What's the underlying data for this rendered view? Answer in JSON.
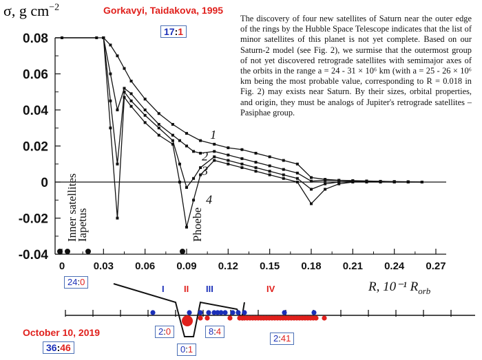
{
  "header": {
    "citation": "Gorkavyi, Taidakova, 1995",
    "count_box": {
      "left": "17",
      "sep": ":",
      "right": "1"
    },
    "ylabel": "σ, g cm",
    "ylabel_exp": "−2"
  },
  "paragraph": "The discovery of four new satellites of Saturn near the outer edge of the rings by the Hubble Space Telescope indicates that the list of minor satellites of this planet is not yet complete. Based on our Saturn-2 model (see Fig. 2), we surmise that the outermost group of not yet discovered retrograde satellites with semimajor axes of the orbits in the range a = 24 - 31 × 10⁶ km (with a = 25 - 26 × 10⁶ km being the most probable value, corresponding to R = 0.018 in Fig. 2) may exists near Saturn. By their sizes, orbital properties, and origin, they must be analogs of Jupiter's retrograde satellites – Pasiphae group.",
  "bottom": {
    "date": "October 10, 2019",
    "total_box": {
      "left": "36",
      "sep": ":",
      "right": "46"
    },
    "box_24_0": {
      "left": "24",
      "sep": ":",
      "right": "0"
    },
    "box_2_0": {
      "left": "2",
      "sep": ":",
      "right": "0"
    },
    "box_0_1": {
      "left": "0",
      "sep": ":",
      "right": "1"
    },
    "box_8_4": {
      "left": "8",
      "sep": ":",
      "right": "4"
    },
    "box_2_41": {
      "left": "2",
      "sep": ":",
      "right": "41"
    },
    "regions": [
      "I",
      "II",
      "III",
      "IV"
    ]
  },
  "chart_data": {
    "type": "line",
    "xlabel": "R, 10⁻¹ R",
    "xlabel_sub": "orb",
    "ylabel": "σ, g cm⁻²",
    "xlim": [
      0,
      0.27
    ],
    "ylim": [
      -0.04,
      0.08
    ],
    "x_ticks": [
      "0",
      "0.03",
      "0.06",
      "0.09",
      "0.12",
      "0.15",
      "0.18",
      "0.21",
      "0.24",
      "0.27"
    ],
    "y_ticks": [
      "0.08",
      "0.06",
      "0.04",
      "0.02",
      "0",
      "-0.02",
      "-0.04"
    ],
    "annotations": [
      "Inner satellites",
      "Iapetus",
      "Phoebe"
    ],
    "series": [
      {
        "name": "1",
        "x": [
          0.0,
          0.025,
          0.03,
          0.035,
          0.04,
          0.045,
          0.05,
          0.06,
          0.07,
          0.08,
          0.09,
          0.1,
          0.11,
          0.12,
          0.13,
          0.14,
          0.15,
          0.16,
          0.17,
          0.18,
          0.19,
          0.2,
          0.21,
          0.22,
          0.23,
          0.24,
          0.25,
          0.26
        ],
        "y": [
          0.08,
          0.08,
          0.08,
          0.076,
          0.07,
          0.063,
          0.056,
          0.046,
          0.038,
          0.032,
          0.027,
          0.023,
          0.021,
          0.019,
          0.018,
          0.016,
          0.014,
          0.012,
          0.01,
          0.0025,
          0.0015,
          0.001,
          0.0008,
          0.0006,
          0.0004,
          0.0003,
          0.0002,
          0.0
        ]
      },
      {
        "name": "2",
        "x": [
          0.03,
          0.035,
          0.04,
          0.045,
          0.05,
          0.06,
          0.07,
          0.08,
          0.085,
          0.09,
          0.095,
          0.1,
          0.11,
          0.12,
          0.13,
          0.14,
          0.15,
          0.16,
          0.17,
          0.18,
          0.19,
          0.2,
          0.21,
          0.22,
          0.23,
          0.24,
          0.25,
          0.26
        ],
        "y": [
          0.08,
          0.06,
          0.04,
          0.052,
          0.049,
          0.04,
          0.032,
          0.026,
          0.023,
          0.02,
          0.017,
          0.016,
          0.017,
          0.015,
          0.013,
          0.011,
          0.009,
          0.007,
          0.005,
          0.0005,
          0.001,
          0.0008,
          0.0006,
          0.0005,
          0.0004,
          0.0002,
          0.0001,
          0.0
        ]
      },
      {
        "name": "3",
        "x": [
          0.03,
          0.035,
          0.04,
          0.045,
          0.05,
          0.06,
          0.07,
          0.08,
          0.085,
          0.09,
          0.095,
          0.1,
          0.11,
          0.12,
          0.13,
          0.14,
          0.15,
          0.16,
          0.17,
          0.18,
          0.19,
          0.2,
          0.21,
          0.22,
          0.23,
          0.24,
          0.25,
          0.26
        ],
        "y": [
          0.08,
          0.045,
          0.01,
          0.05,
          0.045,
          0.037,
          0.03,
          0.023,
          0.01,
          -0.003,
          0.002,
          0.008,
          0.014,
          0.012,
          0.01,
          0.008,
          0.006,
          0.004,
          0.002,
          -0.004,
          -0.001,
          0.0,
          0.0003,
          0.0002,
          0.0001,
          0.0,
          0.0,
          0.0
        ]
      },
      {
        "name": "4",
        "x": [
          0.03,
          0.035,
          0.04,
          0.045,
          0.05,
          0.06,
          0.07,
          0.08,
          0.085,
          0.09,
          0.095,
          0.1,
          0.11,
          0.12,
          0.13,
          0.14,
          0.15,
          0.16,
          0.17,
          0.18,
          0.19,
          0.2,
          0.21,
          0.22,
          0.23,
          0.24,
          0.25,
          0.26
        ],
        "y": [
          0.08,
          0.03,
          -0.02,
          0.047,
          0.042,
          0.033,
          0.026,
          0.021,
          0.0,
          -0.025,
          -0.01,
          0.004,
          0.012,
          0.01,
          0.008,
          0.006,
          0.004,
          0.002,
          0.0,
          -0.012,
          -0.004,
          -0.001,
          0.0,
          0.0,
          0.0,
          0.0,
          0.0,
          0.0
        ]
      }
    ],
    "colors": {
      "curve": "#111111",
      "blue": "#1a2fb8",
      "red": "#e0201c",
      "box_border": "#4a6fb5"
    }
  }
}
